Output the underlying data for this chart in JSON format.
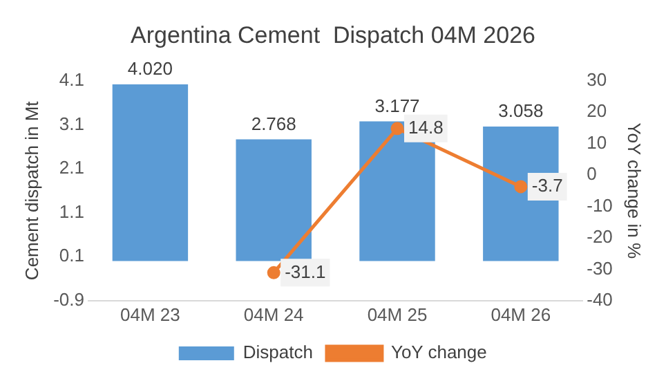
{
  "chart_data": {
    "type": "bar",
    "title": "Argentina Cement  Dispatch 04M 2026",
    "categories": [
      "04M 23",
      "04M 24",
      "04M 25",
      "04M 26"
    ],
    "ylabel": "Cement dispatch in Mt",
    "y2label": "YoY change in %",
    "series": [
      {
        "name": "Dispatch",
        "color": "#5b9bd5",
        "values": [
          4.02,
          2.768,
          3.177,
          3.058
        ],
        "value_labels": [
          "4.020",
          "2.768",
          "3.177",
          "3.058"
        ]
      },
      {
        "name": "YoY change",
        "type": "line",
        "axis": "y2",
        "color": "#ed7d31",
        "marker": "circle",
        "values": [
          null,
          -31.1,
          14.8,
          -3.7
        ],
        "value_labels": [
          null,
          "-31.1",
          "14.8",
          "-3.7"
        ]
      }
    ],
    "ylim": [
      -0.9,
      4.1
    ],
    "yticks": [
      -0.9,
      0.1,
      1.1,
      2.1,
      3.1,
      4.1
    ],
    "y2lim": [
      -40,
      30
    ],
    "y2ticks": [
      -40,
      -30,
      -20,
      -10,
      0,
      10,
      20,
      30
    ],
    "grid": false,
    "legend": "bottom"
  }
}
